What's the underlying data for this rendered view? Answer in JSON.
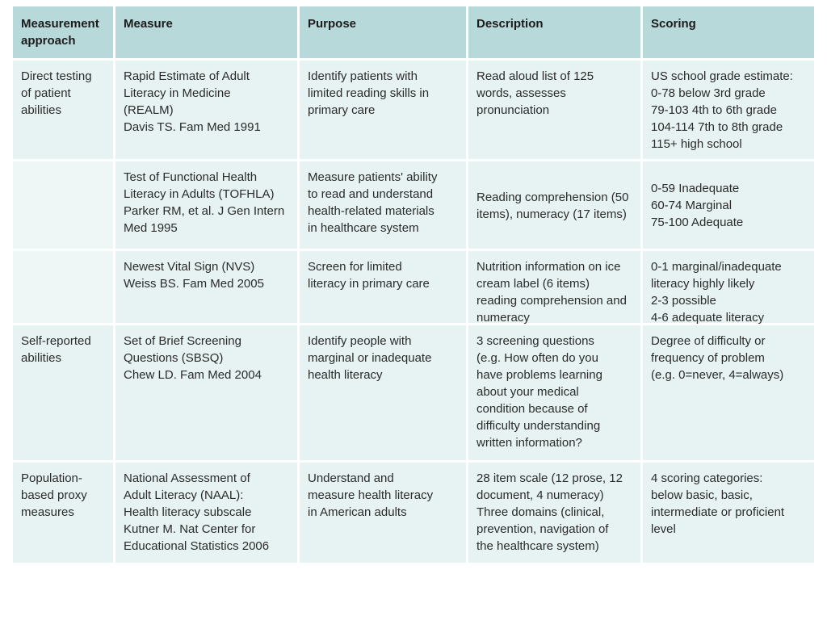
{
  "colors": {
    "page_bg": "#ffffff",
    "header_bg": "#b7d9da",
    "cell_bg": "#e7f2f2",
    "empty_cell_bg": "#eef6f6",
    "text": "#2b2b2b"
  },
  "table": {
    "header": {
      "approach": "Measurement\napproach",
      "measure": "Measure",
      "purpose": "Purpose",
      "description": "Description",
      "scoring": "Scoring"
    },
    "rows": [
      {
        "approach": "Direct testing\nof patient\nabilities",
        "measure": "Rapid Estimate of Adult\nLiteracy in Medicine\n(REALM)\nDavis TS. Fam Med 1991",
        "purpose": "Identify patients with\nlimited reading skills in\nprimary care",
        "description": "Read aloud list of 125\nwords, assesses\npronunciation",
        "scoring": "US school grade estimate:\n0-78 below 3rd grade\n79-103 4th to 6th grade\n104-114 7th to 8th grade\n115+ high school"
      },
      {
        "approach": "",
        "measure": "Test of Functional Health\nLiteracy in Adults (TOFHLA)\nParker RM, et al. J Gen Intern\nMed 1995",
        "purpose": "Measure patients' ability\nto read and understand\nhealth-related materials\nin healthcare system",
        "description": "Reading comprehension (50\nitems), numeracy (17 items)",
        "scoring": "0-59 Inadequate\n60-74 Marginal\n75-100 Adequate"
      },
      {
        "approach": "",
        "measure": "Newest Vital Sign (NVS)\nWeiss BS. Fam Med 2005",
        "purpose": "Screen for limited\nliteracy in primary care",
        "description": "Nutrition information on ice\ncream label (6 items)\nreading comprehension and\nnumeracy",
        "scoring": "0-1 marginal/inadequate\nliteracy highly likely\n2-3 possible\n4-6 adequate literacy"
      },
      {
        "approach": "Self-reported\nabilities",
        "measure": "Set of Brief Screening\nQuestions (SBSQ)\nChew LD. Fam Med 2004",
        "purpose": "Identify people with\nmarginal or inadequate\nhealth literacy",
        "description": "3 screening questions\n(e.g. How often do you\nhave problems learning\nabout your medical\ncondition because of\ndifficulty understanding\nwritten information?",
        "scoring": "Degree of difficulty or\nfrequency of problem\n(e.g. 0=never, 4=always)"
      },
      {
        "approach": "Population-\nbased proxy\nmeasures",
        "measure": "National Assessment of\nAdult Literacy (NAAL):\nHealth literacy subscale\nKutner M. Nat Center for\nEducational Statistics 2006",
        "purpose": "Understand and\nmeasure health literacy\nin American adults",
        "description": "28 item scale (12 prose, 12\ndocument, 4 numeracy)\nThree domains (clinical,\nprevention, navigation of\nthe healthcare system)",
        "scoring": "4 scoring categories:\nbelow basic, basic,\nintermediate or proficient\nlevel"
      }
    ]
  }
}
